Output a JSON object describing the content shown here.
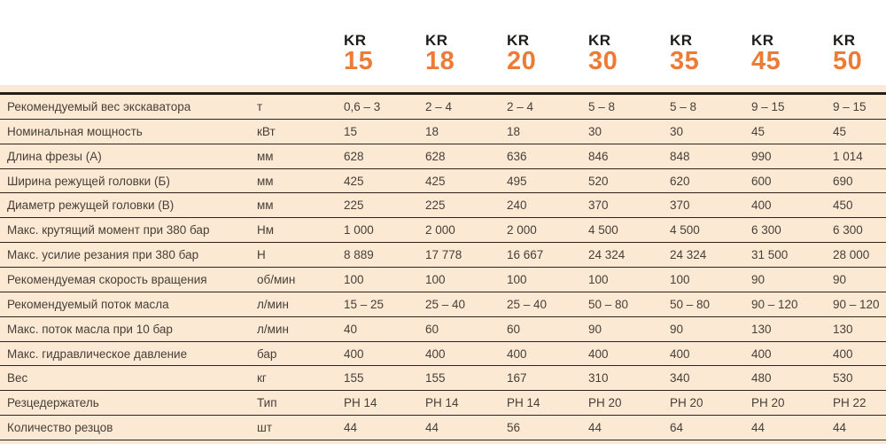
{
  "colors": {
    "accent_orange": "#ee7b35",
    "panel_peach": "#fce9d3",
    "line_dark": "#241e18",
    "text_dark": "#453f38",
    "series_black": "#1d1d1b"
  },
  "header": {
    "models": [
      {
        "series": "KR",
        "number": "15"
      },
      {
        "series": "KR",
        "number": "18"
      },
      {
        "series": "KR",
        "number": "20"
      },
      {
        "series": "KR",
        "number": "30"
      },
      {
        "series": "KR",
        "number": "35"
      },
      {
        "series": "KR",
        "number": "45"
      },
      {
        "series": "KR",
        "number": "50"
      }
    ]
  },
  "table": {
    "rows": [
      {
        "label": "Рекомендуемый вес экскаватора",
        "unit": "т",
        "values": [
          "0,6 – 3",
          "2 – 4",
          "2 – 4",
          "5 – 8",
          "5 – 8",
          "9 – 15",
          "9 – 15"
        ]
      },
      {
        "label": "Номинальная мощность",
        "unit": "кВт",
        "values": [
          "15",
          "18",
          "18",
          "30",
          "30",
          "45",
          "45"
        ]
      },
      {
        "label": "Длина фрезы (А)",
        "unit": "мм",
        "values": [
          "628",
          "628",
          "636",
          "846",
          "848",
          "990",
          "1 014"
        ]
      },
      {
        "label": "Ширина режущей головки (Б)",
        "unit": "мм",
        "values": [
          "425",
          "425",
          "495",
          "520",
          "620",
          "600",
          "690"
        ]
      },
      {
        "label": "Диаметр режущей головки (В)",
        "unit": "мм",
        "values": [
          "225",
          "225",
          "240",
          "370",
          "370",
          "400",
          "450"
        ]
      },
      {
        "label": "Макс. крутящий момент при 380 бар",
        "unit": "Нм",
        "values": [
          "1 000",
          "2 000",
          "2 000",
          "4 500",
          "4 500",
          "6 300",
          "6 300"
        ]
      },
      {
        "label": "Макс. усилие резания при 380 бар",
        "unit": "Н",
        "values": [
          "8 889",
          "17 778",
          "16 667",
          "24 324",
          "24 324",
          "31 500",
          "28 000"
        ]
      },
      {
        "label": "Рекомендуемая скорость вращения",
        "unit": "об/мин",
        "values": [
          "100",
          "100",
          "100",
          "100",
          "100",
          "90",
          "90"
        ]
      },
      {
        "label": "Рекомендуемый поток масла",
        "unit": "л/мин",
        "values": [
          "15 – 25",
          "25 – 40",
          "25 – 40",
          "50 – 80",
          "50 – 80",
          "90 – 120",
          "90 – 120"
        ]
      },
      {
        "label": "Макс. поток масла при 10 бар",
        "unit": "л/мин",
        "values": [
          "40",
          "60",
          "60",
          "90",
          "90",
          "130",
          "130"
        ]
      },
      {
        "label": "Макс. гидравлическое давление",
        "unit": "бар",
        "values": [
          "400",
          "400",
          "400",
          "400",
          "400",
          "400",
          "400"
        ]
      },
      {
        "label": "Вес",
        "unit": "кг",
        "values": [
          "155",
          "155",
          "167",
          "310",
          "340",
          "480",
          "530"
        ]
      },
      {
        "label": "Резцедержатель",
        "unit": "Тип",
        "values": [
          "PH 14",
          "PH 14",
          "PH 14",
          "PH 20",
          "PH 20",
          "PH 20",
          "PH 22"
        ]
      },
      {
        "label": "Количество резцов",
        "unit": "шт",
        "values": [
          "44",
          "44",
          "56",
          "44",
          "64",
          "44",
          "44"
        ]
      }
    ]
  }
}
